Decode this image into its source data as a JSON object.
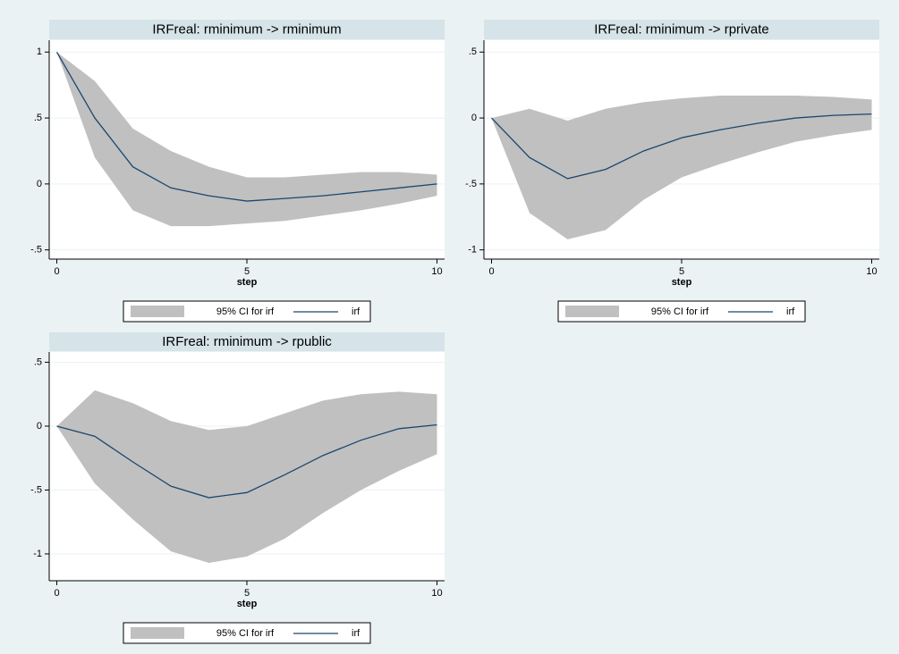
{
  "chart_data": [
    {
      "type": "line",
      "title": "IRFreal: rminimum -> rminimum",
      "x_label": "step",
      "x": [
        0,
        1,
        2,
        3,
        4,
        5,
        6,
        7,
        8,
        9,
        10
      ],
      "xlim": [
        -0.2,
        10.2
      ],
      "xticks": [
        0,
        5,
        10
      ],
      "ylim": [
        -0.57,
        1.09
      ],
      "yticks": [
        1,
        {
          "value": 0.5,
          "label": ".5"
        },
        0,
        {
          "value": -0.5,
          "label": "-.5"
        }
      ],
      "grid": true,
      "series": [
        {
          "name": "95% CI for irf",
          "color": "#c0c0c0",
          "upper": [
            1,
            0.78,
            0.42,
            0.25,
            0.13,
            0.05,
            0.05,
            0.07,
            0.09,
            0.09,
            0.07
          ],
          "lower": [
            1,
            0.2,
            -0.2,
            -0.32,
            -0.32,
            -0.3,
            -0.28,
            -0.24,
            -0.2,
            -0.15,
            -0.09
          ]
        },
        {
          "name": "irf",
          "color": "#1a476f",
          "values": [
            1,
            0.5,
            0.13,
            -0.03,
            -0.09,
            -0.13,
            -0.11,
            -0.09,
            -0.06,
            -0.03,
            0
          ]
        }
      ]
    },
    {
      "type": "line",
      "title": "IRFreal: rminimum -> rprivate",
      "x_label": "step",
      "x": [
        0,
        1,
        2,
        3,
        4,
        5,
        6,
        7,
        8,
        9,
        10
      ],
      "xlim": [
        -0.2,
        10.2
      ],
      "xticks": [
        0,
        5,
        10
      ],
      "ylim": [
        -1.07,
        0.59
      ],
      "yticks": [
        {
          "value": 0.5,
          "label": ".5"
        },
        0,
        {
          "value": -0.5,
          "label": "-.5"
        },
        -1
      ],
      "grid": true,
      "series": [
        {
          "name": "95% CI for irf",
          "color": "#c0c0c0",
          "upper": [
            0,
            0.07,
            -0.02,
            0.07,
            0.12,
            0.15,
            0.17,
            0.17,
            0.17,
            0.16,
            0.14
          ],
          "lower": [
            0,
            -0.72,
            -0.92,
            -0.85,
            -0.62,
            -0.45,
            -0.35,
            -0.26,
            -0.18,
            -0.13,
            -0.09
          ]
        },
        {
          "name": "irf",
          "color": "#1a476f",
          "values": [
            0,
            -0.3,
            -0.46,
            -0.39,
            -0.25,
            -0.15,
            -0.09,
            -0.04,
            0,
            0.02,
            0.03
          ]
        }
      ]
    },
    {
      "type": "line",
      "title": "IRFreal: rminimum -> rpublic",
      "x_label": "step",
      "x": [
        0,
        1,
        2,
        3,
        4,
        5,
        6,
        7,
        8,
        9,
        10
      ],
      "xlim": [
        -0.2,
        10.2
      ],
      "xticks": [
        0,
        5,
        10
      ],
      "ylim": [
        -1.21,
        0.58
      ],
      "yticks": [
        {
          "value": 0.5,
          "label": ".5"
        },
        0,
        {
          "value": -0.5,
          "label": "-.5"
        },
        -1
      ],
      "grid": true,
      "series": [
        {
          "name": "95% CI for irf",
          "color": "#c0c0c0",
          "upper": [
            0,
            0.28,
            0.18,
            0.04,
            -0.03,
            0,
            0.1,
            0.2,
            0.25,
            0.27,
            0.25
          ],
          "lower": [
            0,
            -0.45,
            -0.73,
            -0.98,
            -1.07,
            -1.02,
            -0.88,
            -0.68,
            -0.5,
            -0.35,
            -0.22
          ]
        },
        {
          "name": "irf",
          "color": "#1a476f",
          "values": [
            0,
            -0.08,
            -0.28,
            -0.47,
            -0.56,
            -0.52,
            -0.38,
            -0.23,
            -0.11,
            -0.02,
            0.01
          ]
        }
      ]
    }
  ]
}
